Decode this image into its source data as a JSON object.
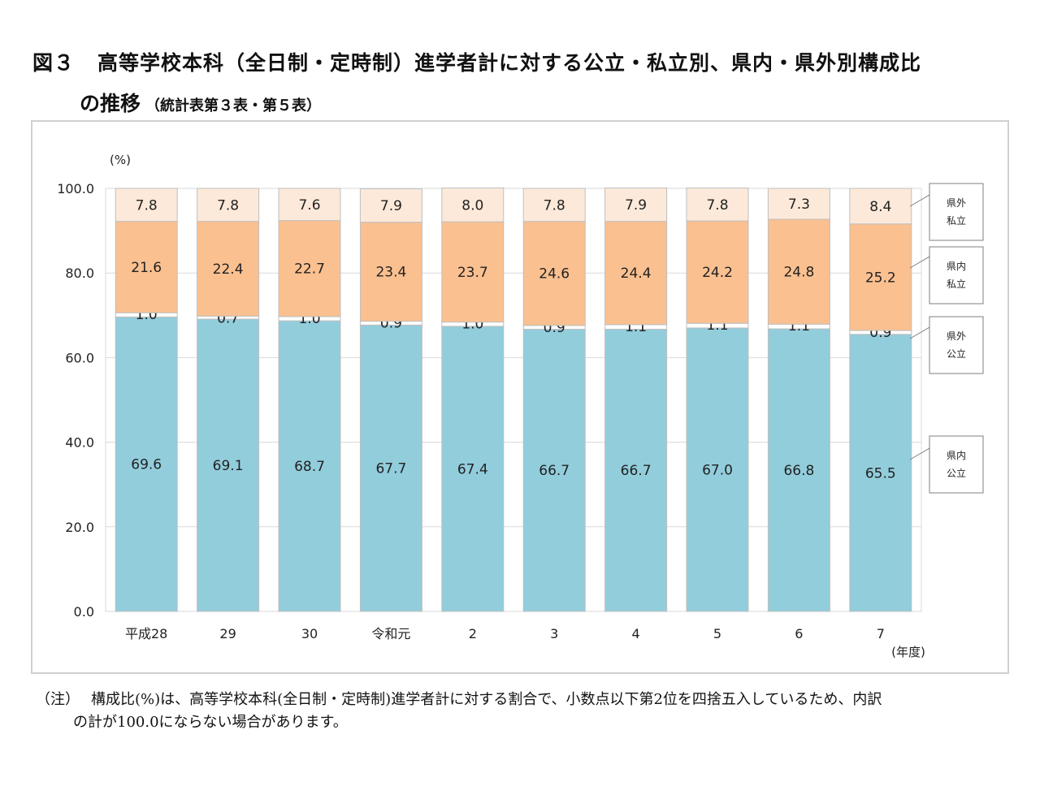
{
  "title": {
    "figure_no": "図３",
    "line1": "高等学校本科（全日制・定時制）進学者計に対する公立・私立別、県内・県外別構成比",
    "line2": "の推移",
    "source": "（統計表第３表・第５表）"
  },
  "note": {
    "label": "（注）",
    "line1": "構成比(%)は、高等学校本科(全日制・定時制)進学者計に対する割合で、小数点以下第2位を四捨五入しているため、内訳",
    "line2": "の計が100.0にならない場合があります。"
  },
  "chart_data": {
    "type": "bar",
    "stacked": true,
    "ylabel": "(%)",
    "xlabel": "(年度)",
    "ylim": [
      0,
      100
    ],
    "yticks": [
      "0.0",
      "20.0",
      "40.0",
      "60.0",
      "80.0",
      "100.0"
    ],
    "grid": true,
    "legend_position": "right",
    "categories": [
      "平成28",
      "29",
      "30",
      "令和元",
      "2",
      "3",
      "4",
      "5",
      "6",
      "7"
    ],
    "series": [
      {
        "name": "県内公立",
        "color": "#92CDDC",
        "values": [
          69.6,
          69.1,
          68.7,
          67.7,
          67.4,
          66.7,
          66.7,
          67.0,
          66.8,
          65.5
        ],
        "labels": [
          "69.6",
          "69.1",
          "68.7",
          "67.7",
          "67.4",
          "66.7",
          "66.7",
          "67.0",
          "66.8",
          "65.5"
        ]
      },
      {
        "name": "県外公立",
        "color": "#FFFFFF",
        "values": [
          1.0,
          0.7,
          1.0,
          0.9,
          1.0,
          0.9,
          1.1,
          1.1,
          1.1,
          0.9
        ],
        "labels": [
          "1.0",
          "0.7",
          "1.0",
          "0.9",
          "1.0",
          "0.9",
          "1.1",
          "1.1",
          "1.1",
          "0.9"
        ]
      },
      {
        "name": "県内私立",
        "color": "#FAC090",
        "values": [
          21.6,
          22.4,
          22.7,
          23.4,
          23.7,
          24.6,
          24.4,
          24.2,
          24.8,
          25.2
        ],
        "labels": [
          "21.6",
          "22.4",
          "22.7",
          "23.4",
          "23.7",
          "24.6",
          "24.4",
          "24.2",
          "24.8",
          "25.2"
        ]
      },
      {
        "name": "県外私立",
        "color": "#FDE9D9",
        "values": [
          7.8,
          7.8,
          7.6,
          7.9,
          8.0,
          7.8,
          7.9,
          7.8,
          7.3,
          8.4
        ],
        "labels": [
          "7.8",
          "7.8",
          "7.6",
          "7.9",
          "8.0",
          "7.8",
          "7.9",
          "7.8",
          "7.3",
          "8.4"
        ]
      }
    ],
    "legend": [
      {
        "line1": "県外",
        "line2": "私立"
      },
      {
        "line1": "県内",
        "line2": "私立"
      },
      {
        "line1": "県外",
        "line2": "公立"
      },
      {
        "line1": "県内",
        "line2": "公立"
      }
    ]
  }
}
